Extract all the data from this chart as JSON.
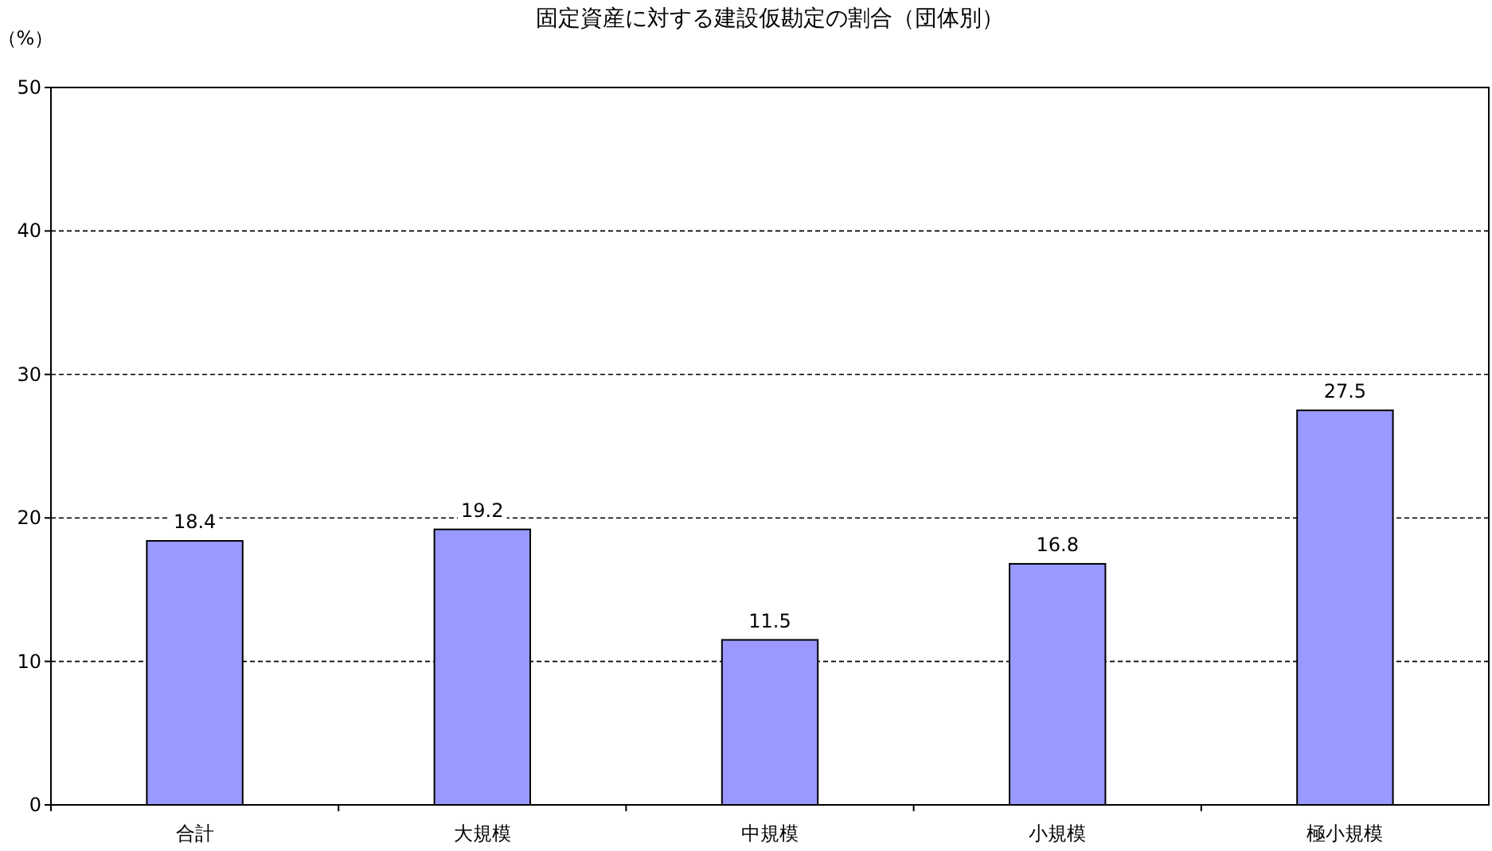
{
  "chart_data": {
    "type": "bar",
    "title": "固定資産に対する建設仮勘定の割合（団体別）",
    "ylabel": "（%）",
    "categories": [
      "合計",
      "大規模",
      "中規模",
      "小規模",
      "極小規模"
    ],
    "values": [
      18.4,
      19.2,
      11.5,
      16.8,
      27.5
    ],
    "color": "#9999ff",
    "ylim": [
      0,
      50
    ],
    "yticks": [
      0,
      10,
      20,
      30,
      40,
      50
    ],
    "grid": "y",
    "data_labels": true
  }
}
